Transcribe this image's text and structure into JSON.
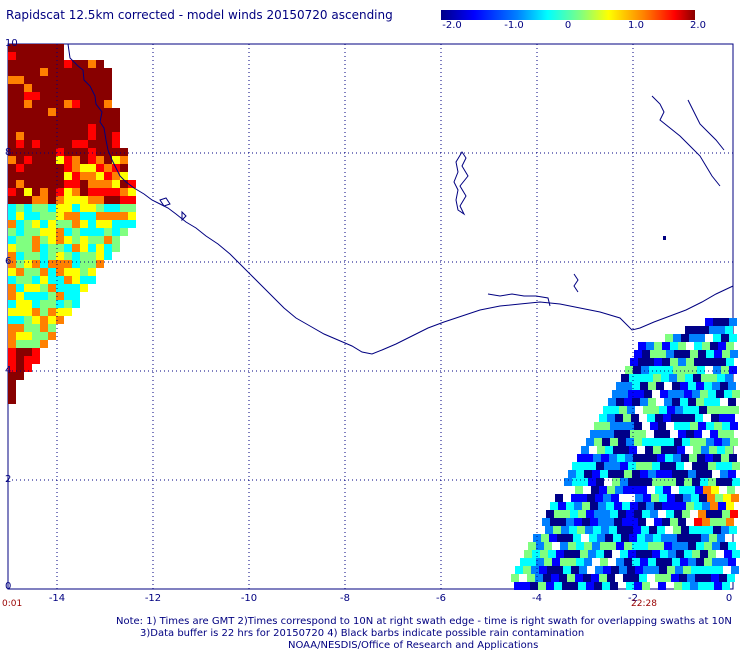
{
  "title": "Rapidscat 12.5km corrected - model winds 20150720 ascending",
  "colorbar": {
    "labels": [
      "-2.0",
      "-1.0",
      "0",
      "1.0",
      "2.0"
    ],
    "range": [
      -2.0,
      2.0
    ],
    "colors": [
      "#000088",
      "#0000ff",
      "#0080ff",
      "#00ffff",
      "#80ff80",
      "#ffff00",
      "#ff8000",
      "#ff0000",
      "#880000"
    ]
  },
  "map": {
    "lon_range": [
      -15.5,
      0
    ],
    "lat_range": [
      0,
      10
    ],
    "x_ticks": [
      "-14",
      "-12",
      "-10",
      "-8",
      "-6",
      "-4",
      "-2",
      "0"
    ],
    "y_ticks": [
      "0",
      "2",
      "4",
      "6",
      "8",
      "10"
    ],
    "grid": "dotted",
    "coastline_color": "#000080"
  },
  "time_labels": {
    "left": "0:01",
    "right": "22:28"
  },
  "footer": {
    "line1": "Note: 1) Times are GMT 2)Times correspond to 10N at right swath edge - time is right swath for overlapping swaths at 10N",
    "line2": "3)Data buffer is 22 hrs for 20150720 4) Black barbs indicate possible rain contamination",
    "line3": "NOAA/NESDIS/Office of Research and Applications"
  }
}
